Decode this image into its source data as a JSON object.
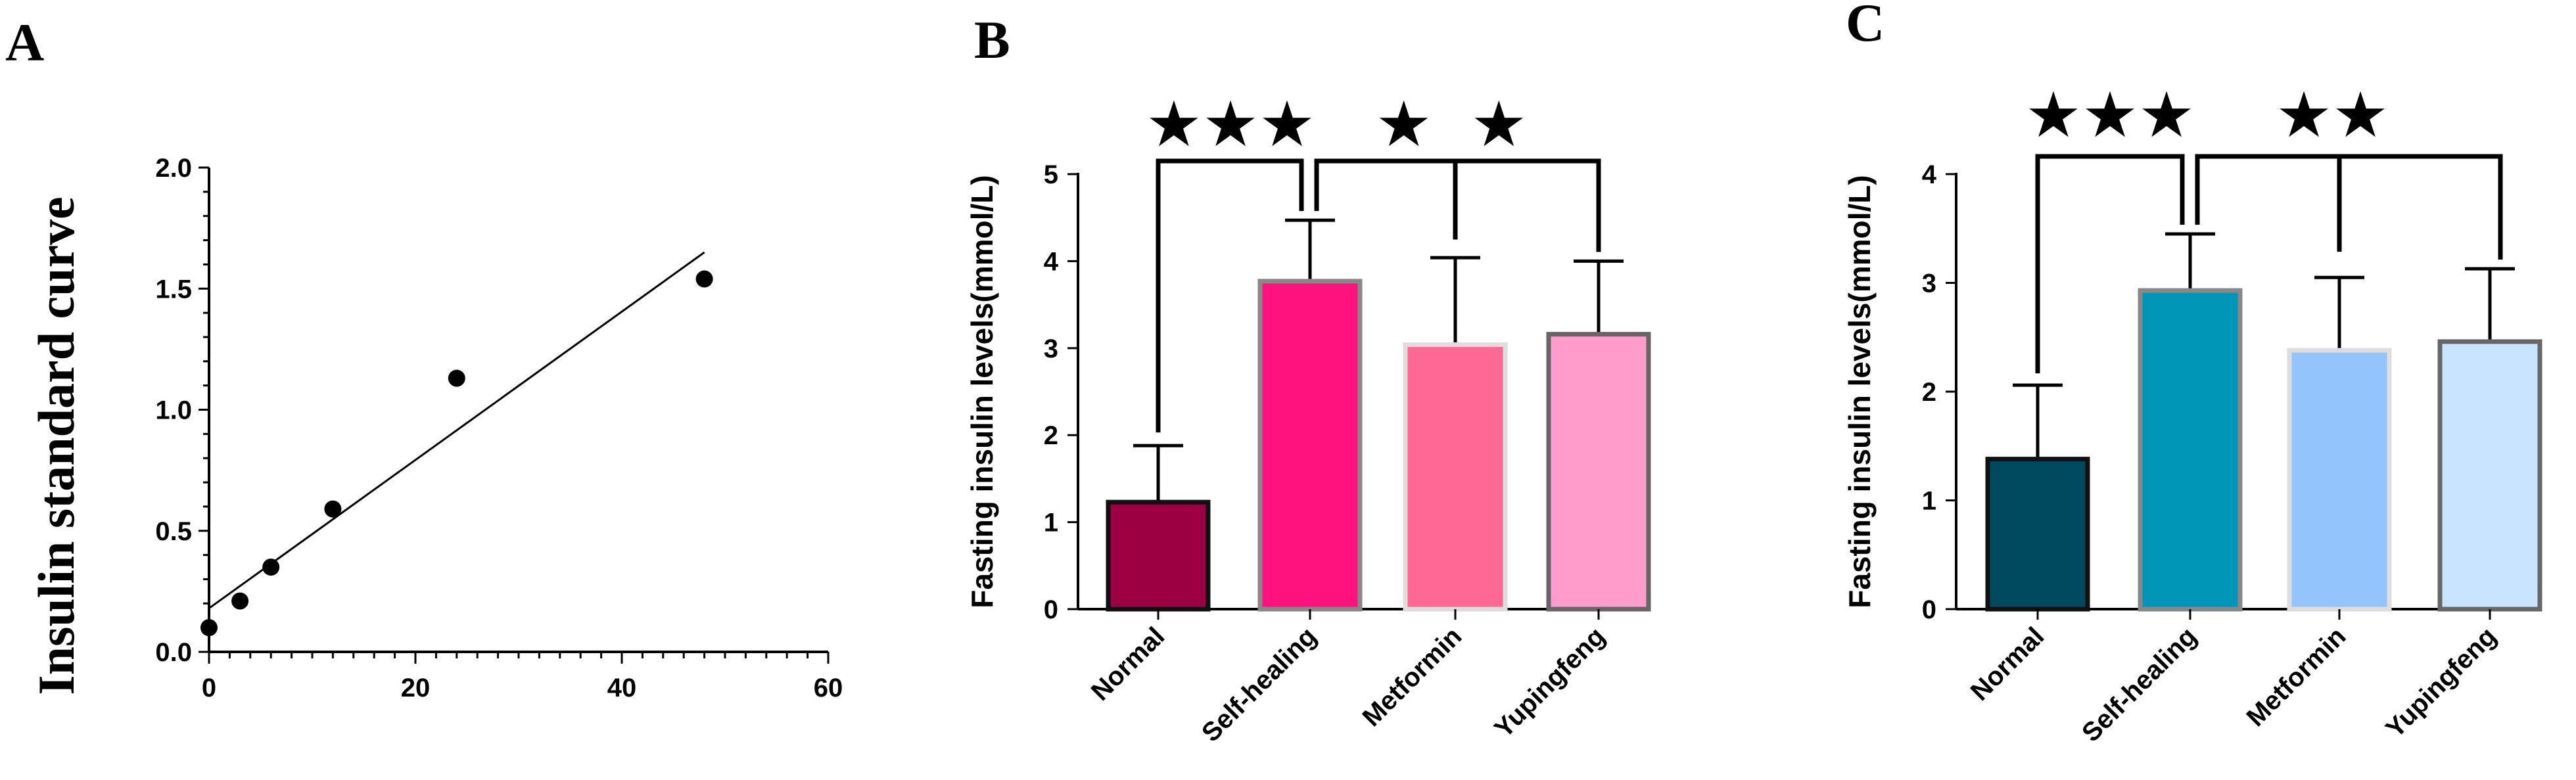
{
  "panels": [
    {
      "letter": "A"
    },
    {
      "letter": "B"
    },
    {
      "letter": "C"
    }
  ],
  "chart_data": [
    {
      "type": "scatter",
      "panel": "A",
      "ylabel": "Insulin standard curve",
      "xlabel": "",
      "xlim": [
        0,
        60
      ],
      "ylim": [
        0,
        2.0
      ],
      "xticks": [
        0,
        20,
        40,
        60
      ],
      "yticks": [
        "0.0",
        "0.5",
        "1.0",
        "1.5",
        "2.0"
      ],
      "points": [
        {
          "x": 0,
          "y": 0.1
        },
        {
          "x": 3,
          "y": 0.21
        },
        {
          "x": 6,
          "y": 0.35
        },
        {
          "x": 12,
          "y": 0.59
        },
        {
          "x": 24,
          "y": 1.13
        },
        {
          "x": 48,
          "y": 1.54
        }
      ],
      "fit_line": {
        "x": [
          0,
          48
        ],
        "y": [
          0.18,
          1.65
        ]
      }
    },
    {
      "type": "bar",
      "panel": "B",
      "ylabel": "Fasting insulin levels(mmol/L)",
      "ylim": [
        0,
        5
      ],
      "yticks": [
        "0",
        "1",
        "2",
        "3",
        "4",
        "5"
      ],
      "categories": [
        "Normal",
        "Self-healing",
        "Metformin",
        "Yupingfeng"
      ],
      "values": [
        1.23,
        3.77,
        3.04,
        3.16
      ],
      "errors": [
        0.65,
        0.7,
        1.0,
        0.84
      ],
      "fill_colors": [
        "#9c0042",
        "#ff117e",
        "#ff6795",
        "#ff9ccb"
      ],
      "stroke_colors": [
        "#111111",
        "#888888",
        "#dddddd",
        "#666666"
      ],
      "significance": [
        {
          "label": "★★★",
          "compare": [
            "Normal",
            "Self-healing"
          ]
        },
        {
          "label": "★ ★",
          "compare": [
            "Self-healing",
            "Metformin",
            "Yupingfeng"
          ]
        }
      ]
    },
    {
      "type": "bar",
      "panel": "C",
      "ylabel": "Fasting insulin levels(mmol/L)",
      "ylim": [
        0,
        4
      ],
      "yticks": [
        "0",
        "1",
        "2",
        "3",
        "4"
      ],
      "categories": [
        "Normal",
        "Self-healing",
        "Metformin",
        "Yupingfeng"
      ],
      "values": [
        1.38,
        2.93,
        2.38,
        2.46
      ],
      "errors": [
        0.68,
        0.52,
        0.67,
        0.67
      ],
      "fill_colors": [
        "#004a60",
        "#0096b8",
        "#93c5fc",
        "#c9e4fe"
      ],
      "stroke_colors": [
        "#111111",
        "#888888",
        "#dddddd",
        "#666666"
      ],
      "significance": [
        {
          "label": "★★★",
          "compare": [
            "Normal",
            "Self-healing"
          ]
        },
        {
          "label": "★★",
          "compare": [
            "Self-healing",
            "Metformin",
            "Yupingfeng"
          ]
        }
      ]
    }
  ]
}
